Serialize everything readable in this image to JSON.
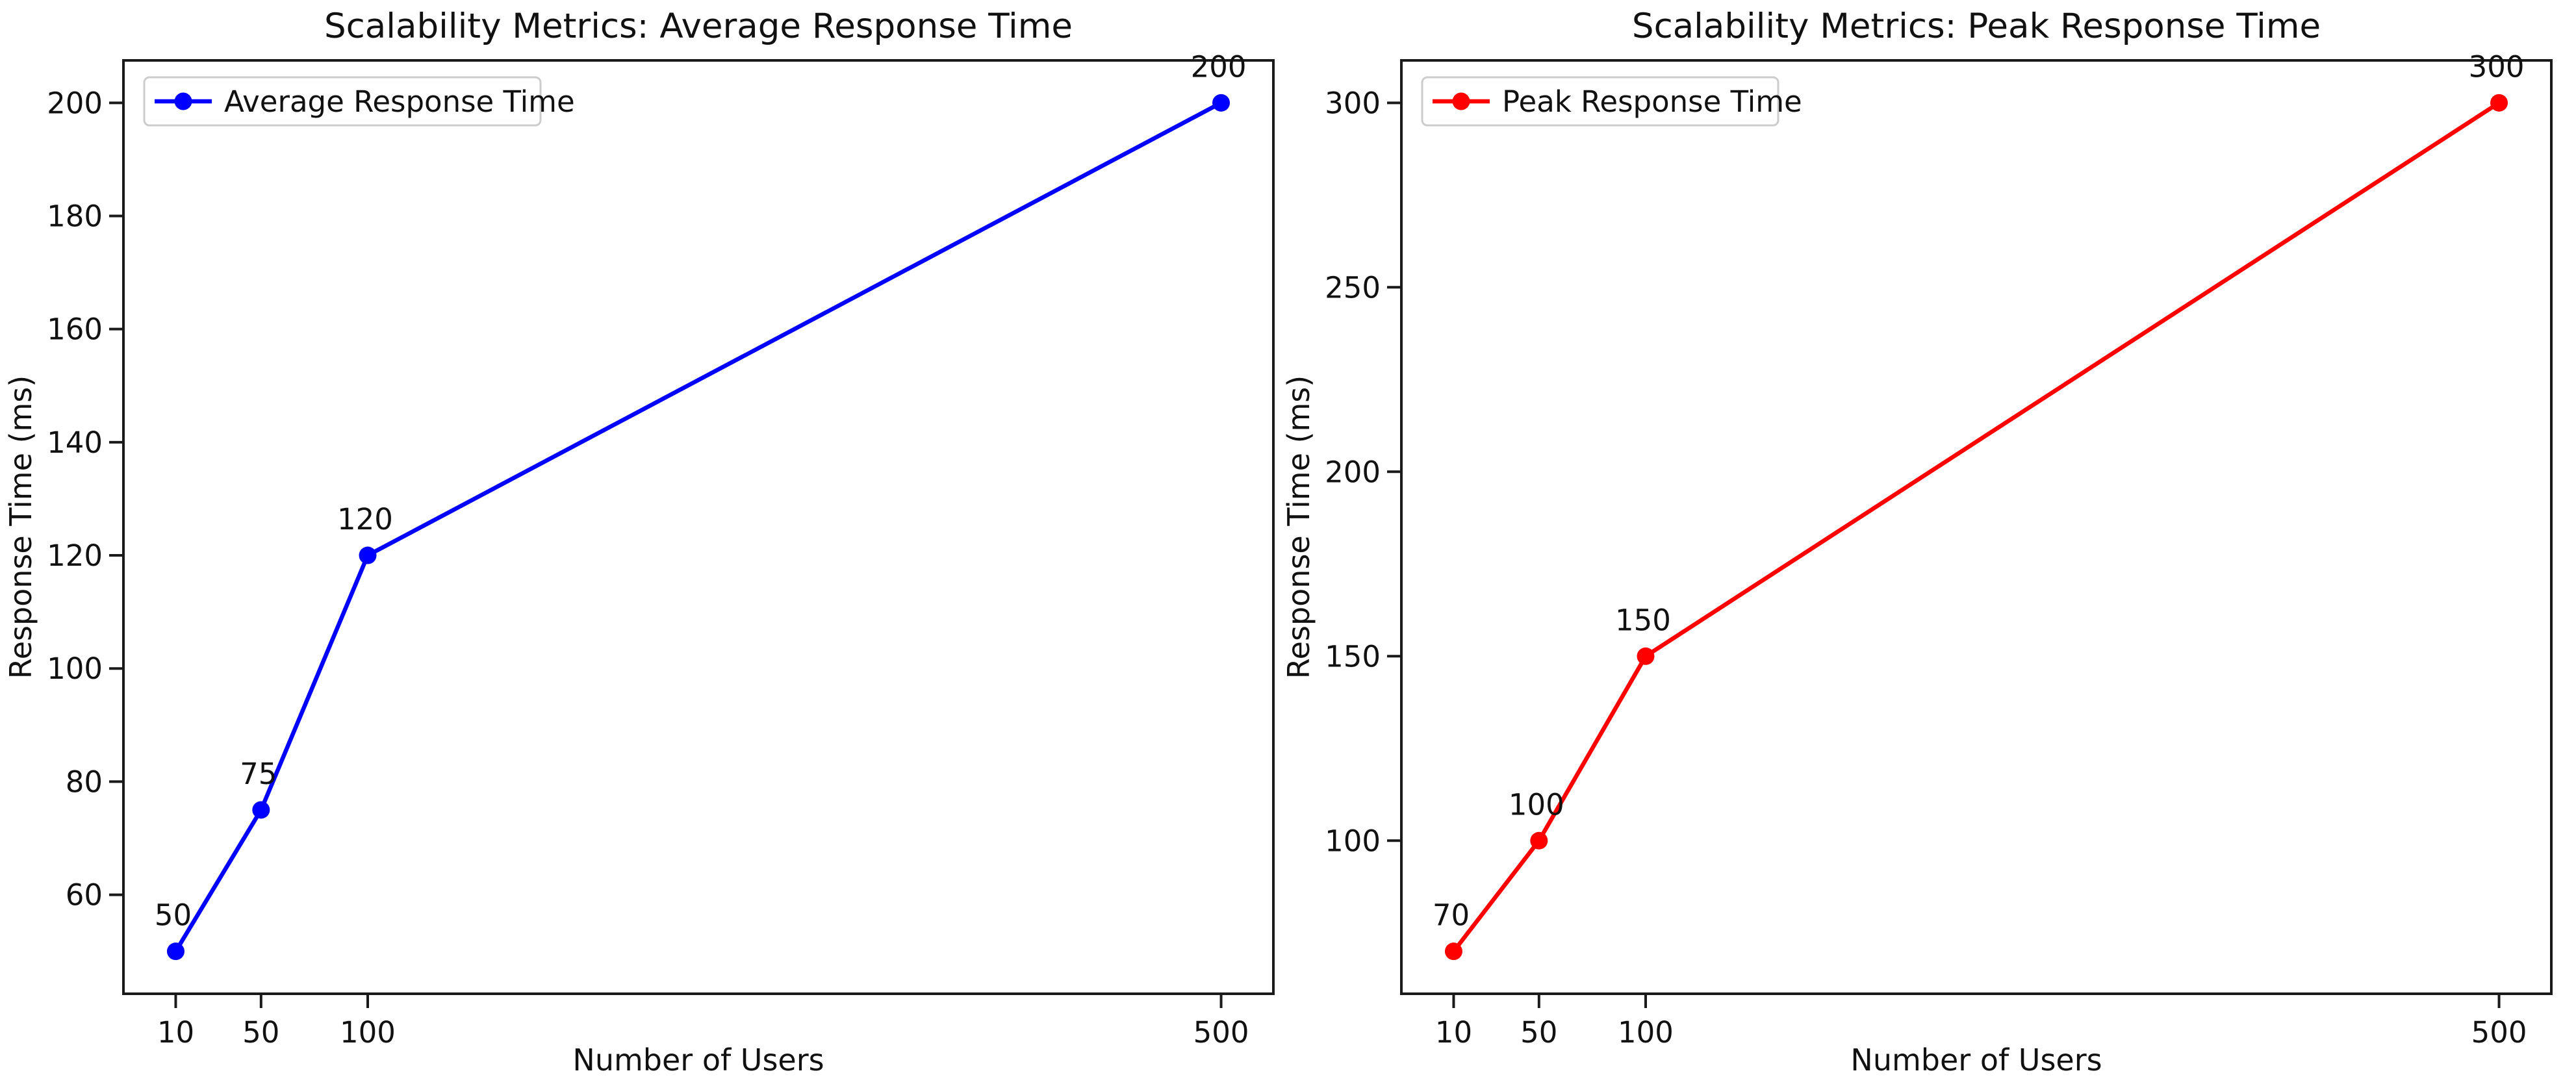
{
  "chart_data": [
    {
      "type": "line",
      "title": "Scalability Metrics: Average Response Time",
      "xlabel": "Number of Users",
      "ylabel": "Response Time (ms)",
      "legend_position": "upper left",
      "grid": false,
      "xticks": [
        10,
        50,
        100,
        500
      ],
      "yticks": [
        60,
        80,
        100,
        120,
        140,
        160,
        180,
        200
      ],
      "xlim": [
        -14.5,
        524.5
      ],
      "ylim": [
        42.5,
        207.5
      ],
      "series": [
        {
          "name": "Average Response Time",
          "color": "#0000ff",
          "marker": "circle",
          "x": [
            10,
            50,
            100,
            500
          ],
          "y": [
            50,
            75,
            120,
            200
          ],
          "point_labels": [
            "50",
            "75",
            "120",
            "200"
          ]
        }
      ]
    },
    {
      "type": "line",
      "title": "Scalability Metrics: Peak Response Time",
      "xlabel": "Number of Users",
      "ylabel": "Response Time (ms)",
      "legend_position": "upper left",
      "grid": false,
      "xticks": [
        10,
        50,
        100,
        500
      ],
      "yticks": [
        100,
        150,
        200,
        250,
        300
      ],
      "xlim": [
        -14.5,
        524.5
      ],
      "ylim": [
        58.5,
        311.5
      ],
      "series": [
        {
          "name": "Peak Response Time",
          "color": "#ff0000",
          "marker": "circle",
          "x": [
            10,
            50,
            100,
            500
          ],
          "y": [
            70,
            100,
            150,
            300
          ],
          "point_labels": [
            "70",
            "100",
            "150",
            "300"
          ]
        }
      ]
    }
  ],
  "colors": {
    "spine": "#1a1a1a",
    "text": "#111111",
    "legend_border": "#cccccc",
    "legend_fill": "#ffffff",
    "background": "#ffffff"
  }
}
